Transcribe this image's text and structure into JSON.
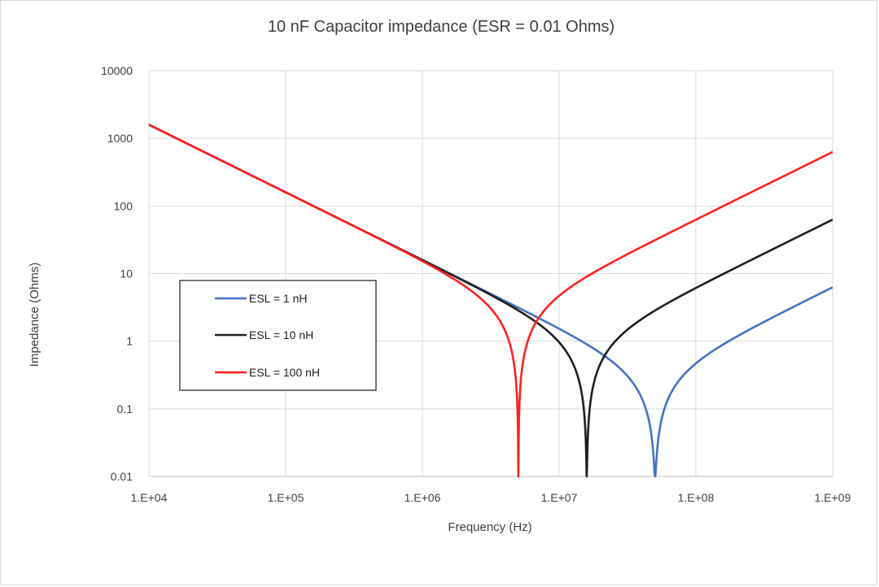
{
  "chart_data": {
    "type": "line",
    "title": "10 nF Capacitor impedance (ESR = 0.01 Ohms)",
    "xlabel": "Frequency (Hz)",
    "ylabel": "Impedance (Ohms)",
    "x_scale": "log",
    "y_scale": "log",
    "xlim": [
      10000,
      1000000000
    ],
    "ylim": [
      0.01,
      10000
    ],
    "x_ticks": [
      10000,
      100000,
      1000000,
      10000000,
      100000000,
      1000000000
    ],
    "x_tick_labels": [
      "1.E+04",
      "1.E+05",
      "1.E+06",
      "1.E+07",
      "1.E+08",
      "1.E+09"
    ],
    "y_ticks": [
      0.01,
      0.1,
      1,
      10,
      100,
      1000,
      10000
    ],
    "y_tick_labels": [
      "0.01",
      "0.1",
      "1",
      "10",
      "100",
      "1000",
      "10000"
    ],
    "grid": true,
    "legend_position": "middle-left",
    "capacitance_F": 1e-08,
    "esr_ohms": 0.01,
    "series": [
      {
        "name": "ESL = 1 nH",
        "esl_H": 1e-09,
        "color": "#4472c4",
        "points": [
          [
            10000,
            1591.5
          ],
          [
            1000000,
            15.9
          ],
          [
            10000000,
            1.53
          ],
          [
            50330000,
            0.01
          ],
          [
            100000000,
            0.47
          ],
          [
            1000000000,
            6.27
          ]
        ]
      },
      {
        "name": "ESL = 10 nH",
        "esl_H": 1e-08,
        "color": "#1f1f1f",
        "points": [
          [
            10000,
            1591.5
          ],
          [
            1000000,
            15.85
          ],
          [
            10000000,
            0.96
          ],
          [
            15920000,
            0.01
          ],
          [
            100000000,
            6.12
          ],
          [
            1000000000,
            62.8
          ]
        ]
      },
      {
        "name": "ESL = 100 nH",
        "esl_H": 1e-07,
        "color": "#ff2020",
        "points": [
          [
            10000,
            1591.5
          ],
          [
            1000000,
            15.3
          ],
          [
            5033000,
            0.01
          ],
          [
            10000000,
            4.69
          ],
          [
            100000000,
            62.7
          ],
          [
            1000000000,
            628.3
          ]
        ]
      }
    ]
  }
}
